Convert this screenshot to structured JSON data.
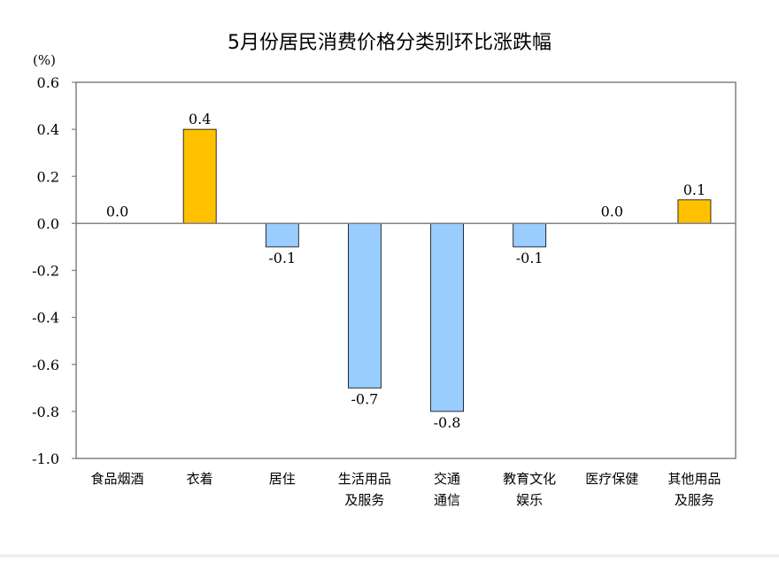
{
  "chart_data": {
    "type": "bar",
    "title": "5月份居民消费价格分类别环比涨跌幅",
    "unit": "(%)",
    "ylim": [
      -1.0,
      0.6
    ],
    "yticks": [
      "0.6",
      "0.4",
      "0.2",
      "0.0",
      "-0.2",
      "-0.4",
      "-0.6",
      "-0.8",
      "-1.0"
    ],
    "ytick_values": [
      0.6,
      0.4,
      0.2,
      0.0,
      -0.2,
      -0.4,
      -0.6,
      -0.8,
      -1.0
    ],
    "grid": false,
    "categories": [
      [
        "食品烟酒"
      ],
      [
        "衣着"
      ],
      [
        "居住"
      ],
      [
        "生活用品",
        "及服务"
      ],
      [
        "交通",
        "通信"
      ],
      [
        "教育文化",
        "娱乐"
      ],
      [
        "医疗保健"
      ],
      [
        "其他用品",
        "及服务"
      ]
    ],
    "values": [
      0.0,
      0.4,
      -0.1,
      -0.7,
      -0.8,
      -0.1,
      0.0,
      0.1
    ],
    "value_labels": [
      "0.0",
      "0.4",
      "-0.1",
      "-0.7",
      "-0.8",
      "-0.1",
      "0.0",
      "0.1"
    ],
    "colors": {
      "positive": "#FFC000",
      "negative": "#99CCFF",
      "axis": "#808080",
      "bar_stroke": "#000000"
    }
  }
}
